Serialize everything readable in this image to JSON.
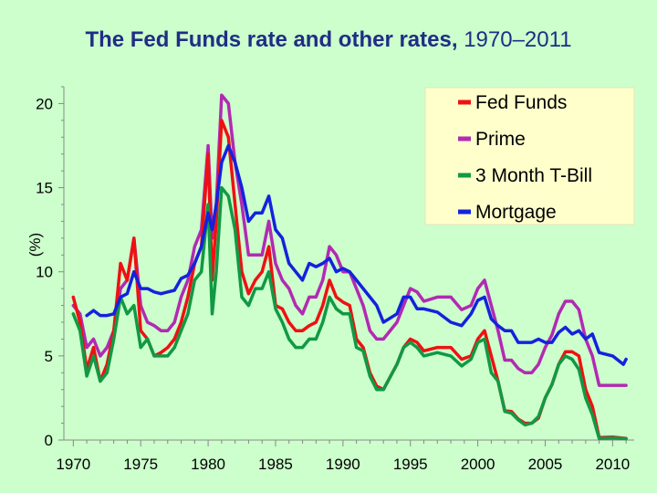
{
  "chart_data": {
    "type": "line",
    "title_main": "The Fed Funds rate and other rates,",
    "title_years": "1970–2011",
    "ylabel": "(%)",
    "xlabel": "",
    "xlim": [
      1969.3,
      2011.6
    ],
    "ylim": [
      0,
      21
    ],
    "x_ticks": [
      1970,
      1975,
      1980,
      1985,
      1990,
      1995,
      2000,
      2005,
      2010
    ],
    "y_ticks": [
      0,
      5,
      10,
      15,
      20
    ],
    "legend_position": "top-right",
    "series": [
      {
        "name": "Fed Funds",
        "color": "#ee1111",
        "x": [
          1970.0,
          1970.5,
          1971.0,
          1971.5,
          1972.0,
          1972.5,
          1973.0,
          1973.5,
          1974.0,
          1974.5,
          1975.0,
          1975.5,
          1976.0,
          1976.5,
          1977.0,
          1977.5,
          1978.0,
          1978.5,
          1979.0,
          1979.5,
          1980.0,
          1980.3,
          1980.6,
          1981.0,
          1981.5,
          1982.0,
          1982.5,
          1983.0,
          1983.5,
          1984.0,
          1984.5,
          1985.0,
          1985.5,
          1986.0,
          1986.5,
          1987.0,
          1987.5,
          1988.0,
          1988.5,
          1989.0,
          1989.5,
          1990.0,
          1990.5,
          1991.0,
          1991.5,
          1992.0,
          1992.5,
          1993.0,
          1994.0,
          1994.5,
          1995.0,
          1995.5,
          1996.0,
          1997.0,
          1998.0,
          1998.8,
          1999.5,
          2000.0,
          2000.5,
          2001.0,
          2001.5,
          2002.0,
          2002.5,
          2003.0,
          2003.5,
          2004.0,
          2004.5,
          2005.0,
          2005.5,
          2006.0,
          2006.5,
          2007.0,
          2007.5,
          2008.0,
          2008.5,
          2009.0,
          2010.0,
          2011.0
        ],
        "values": [
          8.5,
          7.0,
          4.2,
          5.5,
          3.5,
          4.5,
          6.5,
          10.5,
          9.5,
          12.0,
          6.5,
          6.0,
          5.0,
          5.2,
          5.5,
          6.0,
          7.0,
          8.5,
          10.5,
          11.5,
          17.0,
          9.5,
          13.0,
          19.0,
          18.0,
          14.0,
          10.0,
          8.7,
          9.5,
          10.0,
          11.5,
          8.0,
          7.8,
          7.0,
          6.5,
          6.5,
          6.8,
          7.0,
          8.0,
          9.5,
          8.5,
          8.2,
          8.0,
          6.0,
          5.5,
          4.0,
          3.2,
          3.0,
          4.5,
          5.5,
          6.0,
          5.8,
          5.3,
          5.5,
          5.5,
          4.8,
          5.0,
          6.0,
          6.5,
          5.0,
          3.5,
          1.75,
          1.7,
          1.25,
          1.0,
          1.0,
          1.3,
          2.5,
          3.3,
          4.5,
          5.25,
          5.25,
          5.0,
          3.0,
          2.0,
          0.15,
          0.18,
          0.1
        ]
      },
      {
        "name": "Prime",
        "color": "#b22ab2",
        "x": [
          1970.0,
          1970.5,
          1971.0,
          1971.5,
          1972.0,
          1972.5,
          1973.0,
          1973.5,
          1974.0,
          1974.5,
          1975.0,
          1975.5,
          1976.0,
          1976.5,
          1977.0,
          1977.5,
          1978.0,
          1978.5,
          1979.0,
          1979.5,
          1980.0,
          1980.3,
          1980.6,
          1981.0,
          1981.5,
          1982.0,
          1982.5,
          1983.0,
          1983.5,
          1984.0,
          1984.5,
          1985.0,
          1985.5,
          1986.0,
          1986.5,
          1987.0,
          1987.5,
          1988.0,
          1988.5,
          1989.0,
          1989.5,
          1990.0,
          1990.5,
          1991.0,
          1991.5,
          1992.0,
          1992.5,
          1993.0,
          1994.0,
          1994.5,
          1995.0,
          1995.5,
          1996.0,
          1997.0,
          1998.0,
          1998.8,
          1999.5,
          2000.0,
          2000.5,
          2001.0,
          2001.5,
          2002.0,
          2002.5,
          2003.0,
          2003.5,
          2004.0,
          2004.5,
          2005.0,
          2005.5,
          2006.0,
          2006.5,
          2007.0,
          2007.5,
          2008.0,
          2008.5,
          2009.0,
          2010.0,
          2011.0
        ],
        "values": [
          8.0,
          7.5,
          5.5,
          6.0,
          5.0,
          5.5,
          6.5,
          9.0,
          9.5,
          12.0,
          8.0,
          7.0,
          6.8,
          6.5,
          6.5,
          7.0,
          8.5,
          9.5,
          11.5,
          12.5,
          17.5,
          12.0,
          14.0,
          20.5,
          20.0,
          16.5,
          14.0,
          11.0,
          11.0,
          11.0,
          13.0,
          10.5,
          9.5,
          9.0,
          8.0,
          7.5,
          8.5,
          8.5,
          9.5,
          11.5,
          11.0,
          10.0,
          10.0,
          9.0,
          8.0,
          6.5,
          6.0,
          6.0,
          7.0,
          8.0,
          9.0,
          8.8,
          8.25,
          8.5,
          8.5,
          7.75,
          8.0,
          9.0,
          9.5,
          8.0,
          6.5,
          4.75,
          4.75,
          4.25,
          4.0,
          4.0,
          4.5,
          5.5,
          6.25,
          7.5,
          8.25,
          8.25,
          7.75,
          6.0,
          5.0,
          3.25,
          3.25,
          3.25
        ]
      },
      {
        "name": "3 Month T-Bill",
        "color": "#119944",
        "x": [
          1970.0,
          1970.5,
          1971.0,
          1971.5,
          1972.0,
          1972.5,
          1973.0,
          1973.5,
          1974.0,
          1974.5,
          1975.0,
          1975.5,
          1976.0,
          1976.5,
          1977.0,
          1977.5,
          1978.0,
          1978.5,
          1979.0,
          1979.5,
          1980.0,
          1980.3,
          1980.6,
          1981.0,
          1981.5,
          1982.0,
          1982.5,
          1983.0,
          1983.5,
          1984.0,
          1984.5,
          1985.0,
          1985.5,
          1986.0,
          1986.5,
          1987.0,
          1987.5,
          1988.0,
          1988.5,
          1989.0,
          1989.5,
          1990.0,
          1990.5,
          1991.0,
          1991.5,
          1992.0,
          1992.5,
          1993.0,
          1994.0,
          1994.5,
          1995.0,
          1995.5,
          1996.0,
          1997.0,
          1998.0,
          1998.8,
          1999.5,
          2000.0,
          2000.5,
          2001.0,
          2001.5,
          2002.0,
          2002.5,
          2003.0,
          2003.5,
          2004.0,
          2004.5,
          2005.0,
          2005.5,
          2006.0,
          2006.5,
          2007.0,
          2007.5,
          2008.0,
          2008.5,
          2009.0,
          2010.0,
          2011.0
        ],
        "values": [
          7.5,
          6.5,
          3.8,
          5.0,
          3.5,
          4.0,
          6.0,
          8.5,
          7.5,
          8.0,
          5.5,
          6.0,
          5.0,
          5.0,
          5.0,
          5.5,
          6.5,
          7.5,
          9.5,
          10.0,
          14.0,
          7.5,
          10.0,
          15.0,
          14.5,
          12.5,
          8.5,
          8.0,
          9.0,
          9.0,
          10.0,
          7.8,
          7.0,
          6.0,
          5.5,
          5.5,
          6.0,
          6.0,
          7.0,
          8.5,
          7.8,
          7.5,
          7.5,
          5.5,
          5.3,
          3.8,
          3.0,
          3.0,
          4.5,
          5.5,
          5.8,
          5.5,
          5.0,
          5.2,
          5.0,
          4.4,
          4.8,
          5.8,
          6.0,
          4.0,
          3.5,
          1.7,
          1.6,
          1.2,
          0.9,
          1.0,
          1.4,
          2.5,
          3.3,
          4.5,
          5.0,
          4.8,
          4.2,
          2.5,
          1.5,
          0.1,
          0.12,
          0.08
        ]
      },
      {
        "name": "Mortgage",
        "color": "#1422dd",
        "x": [
          1971.0,
          1971.5,
          1972.0,
          1972.5,
          1973.0,
          1973.5,
          1974.0,
          1974.5,
          1975.0,
          1975.5,
          1976.0,
          1976.5,
          1977.0,
          1977.5,
          1978.0,
          1978.5,
          1979.0,
          1979.5,
          1980.0,
          1980.3,
          1980.6,
          1981.0,
          1981.5,
          1982.0,
          1982.5,
          1983.0,
          1983.5,
          1984.0,
          1984.5,
          1985.0,
          1985.5,
          1986.0,
          1986.5,
          1987.0,
          1987.5,
          1988.0,
          1988.5,
          1989.0,
          1989.5,
          1990.0,
          1990.5,
          1991.0,
          1991.5,
          1992.0,
          1992.5,
          1993.0,
          1994.0,
          1994.5,
          1995.0,
          1995.5,
          1996.0,
          1997.0,
          1998.0,
          1998.8,
          1999.5,
          2000.0,
          2000.5,
          2001.0,
          2001.5,
          2002.0,
          2002.5,
          2003.0,
          2003.5,
          2004.0,
          2004.5,
          2005.0,
          2005.5,
          2006.0,
          2006.5,
          2007.0,
          2007.5,
          2008.0,
          2008.5,
          2009.0,
          2010.0,
          2010.8,
          2011.0
        ],
        "values": [
          7.4,
          7.7,
          7.4,
          7.4,
          7.5,
          8.5,
          8.7,
          10.0,
          9.0,
          9.0,
          8.8,
          8.7,
          8.8,
          8.9,
          9.6,
          9.8,
          10.5,
          11.5,
          13.5,
          12.5,
          14.0,
          16.5,
          17.5,
          16.5,
          15.0,
          13.0,
          13.5,
          13.5,
          14.5,
          12.5,
          12.0,
          10.5,
          10.0,
          9.5,
          10.5,
          10.3,
          10.5,
          10.8,
          10.0,
          10.2,
          10.0,
          9.5,
          9.0,
          8.5,
          8.0,
          7.0,
          7.5,
          8.5,
          8.5,
          7.8,
          7.8,
          7.6,
          7.0,
          6.8,
          7.5,
          8.3,
          8.5,
          7.2,
          6.8,
          6.5,
          6.5,
          5.8,
          5.8,
          5.8,
          6.0,
          5.8,
          5.8,
          6.4,
          6.7,
          6.3,
          6.5,
          6.0,
          6.3,
          5.2,
          5.0,
          4.5,
          4.8
        ]
      }
    ]
  }
}
